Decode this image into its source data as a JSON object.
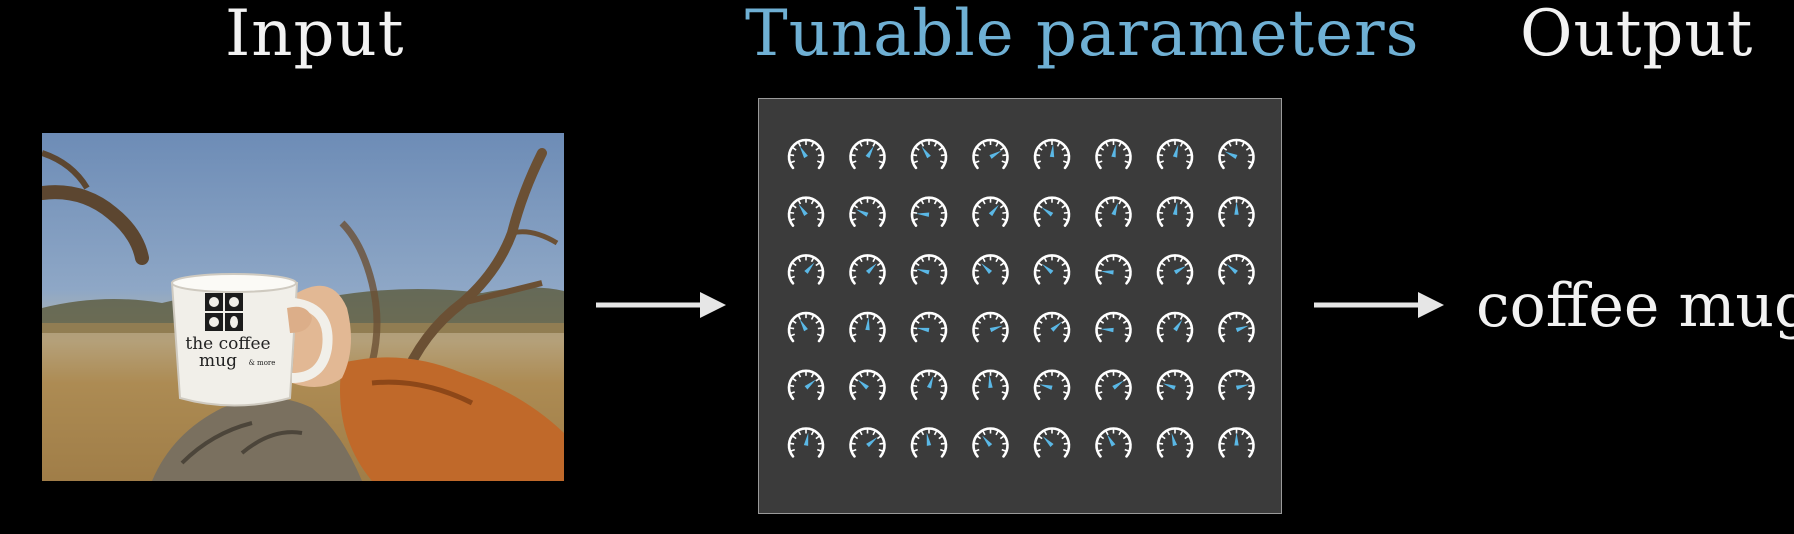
{
  "headings": {
    "input": "Input",
    "params": "Tunable parameters",
    "output": "Output"
  },
  "colors": {
    "heading": "#f2f2f2",
    "params_heading": "#6fb0d4",
    "arrow": "#e6e6e6",
    "dial_outline": "#ffffff",
    "dial_needle": "#5ab8e6",
    "panel": "#3b3b3b"
  },
  "input_image": {
    "mug_logo_line1": "the coffee",
    "mug_logo_line2": "mug",
    "mug_logo_small": "& more"
  },
  "output_label": "coffee mug",
  "dials": {
    "rows": 6,
    "cols": 8,
    "needle_angles": [
      [
        60,
        120,
        55,
        150,
        95,
        100,
        105,
        25
      ],
      [
        55,
        25,
        5,
        130,
        35,
        110,
        100,
        90
      ],
      [
        130,
        135,
        15,
        45,
        40,
        5,
        150,
        40
      ],
      [
        60,
        95,
        10,
        160,
        140,
        5,
        125,
        160
      ],
      [
        140,
        40,
        110,
        85,
        15,
        145,
        20,
        165
      ],
      [
        100,
        140,
        80,
        50,
        45,
        60,
        75,
        90
      ]
    ]
  }
}
